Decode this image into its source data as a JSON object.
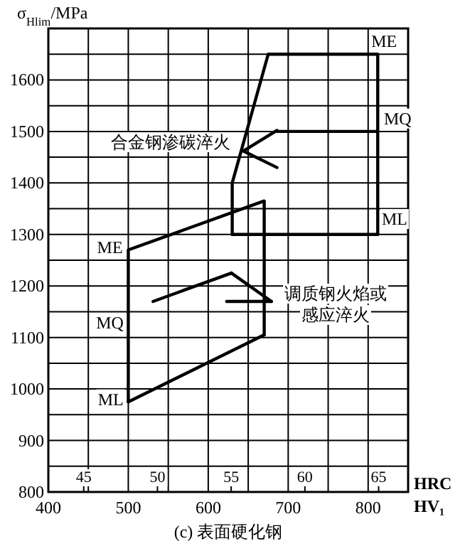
{
  "chart_data": {
    "type": "line",
    "title": "(c) 表面硬化钢",
    "xlabel": "HV₁",
    "x2label": "HRC",
    "ylabel": "σ$_{Hlim}$/MPa",
    "xlim": [
      400,
      850
    ],
    "ylim": [
      800,
      1700
    ],
    "xticks": [
      400,
      {
        "value": 450,
        "label": null
      },
      500,
      {
        "value": 550,
        "label": null
      },
      600,
      {
        "value": 650,
        "label": null
      },
      700,
      {
        "value": 750,
        "label": null
      },
      800,
      {
        "value": 850,
        "label": null
      }
    ],
    "yticks": [
      800,
      {
        "value": 850,
        "label": null
      },
      900,
      {
        "value": 950,
        "label": null
      },
      1000,
      {
        "value": 1050,
        "label": null
      },
      1100,
      {
        "value": 1150,
        "label": null
      },
      1200,
      {
        "value": 1250,
        "label": null
      },
      1300,
      {
        "value": 1350,
        "label": null
      },
      1400,
      {
        "value": 1450,
        "label": null
      },
      1500,
      {
        "value": 1550,
        "label": null
      },
      1600,
      {
        "value": 1650,
        "label": null
      },
      {
        "value": 1700,
        "label": null
      }
    ],
    "x2lim": [
      42.6,
      67
    ],
    "x2ticks": [
      45,
      50,
      55,
      60,
      65
    ],
    "grid": true,
    "series": [
      {
        "color": "#000000",
        "x": [
          630,
          630,
          675,
          812,
          812
        ],
        "values": [
          1300,
          1400,
          1650,
          1650,
          1300
        ]
      },
      {
        "color": "#000000",
        "x": [
          686,
          812
        ],
        "values": [
          1500,
          1500
        ]
      },
      {
        "color": "#000000",
        "x": [
          630,
          812
        ],
        "values": [
          1300,
          1300
        ]
      },
      {
        "color": "#000000",
        "x": [
          500,
          500,
          670,
          670
        ],
        "values": [
          975,
          1270,
          1365,
          1105
        ]
      },
      {
        "color": "#000000",
        "x": [
          500,
          670
        ],
        "values": [
          975,
          1105
        ]
      },
      {
        "color": "#000000",
        "x": [
          531,
          629
        ],
        "values": [
          1170,
          1225
        ]
      },
      {
        "color": "#000000",
        "x": [
          644,
          686
        ],
        "values": [
          1462,
          1502
        ]
      },
      {
        "color": "#000000",
        "x": [
          644,
          686
        ],
        "values": [
          1462,
          1430
        ]
      },
      {
        "color": "#000000",
        "x": [
          629,
          679
        ],
        "values": [
          1225,
          1170
        ]
      },
      {
        "color": "#000000",
        "x": [
          623,
          679
        ],
        "values": [
          1170,
          1170
        ]
      }
    ],
    "annotations": [
      {
        "text": "ME",
        "x": 820,
        "y": 1675
      },
      {
        "text": "MQ",
        "x": 837,
        "y": 1525
      },
      {
        "text": "ML",
        "x": 833,
        "y": 1330
      },
      {
        "text": "ME",
        "x": 477,
        "y": 1275
      },
      {
        "text": "MQ",
        "x": 477,
        "y": 1128
      },
      {
        "text": "ML",
        "x": 478,
        "y": 980
      },
      "合金钢渗碳淬火",
      "调质钢火焰或感应淬火"
    ]
  }
}
